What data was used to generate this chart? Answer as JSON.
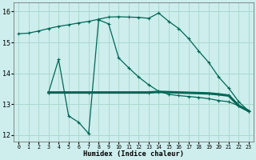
{
  "xlabel": "Humidex (Indice chaleur)",
  "bg_color": "#cdeeed",
  "grid_color": "#aad8cc",
  "line_color": "#006655",
  "xlim": [
    -0.5,
    23.5
  ],
  "ylim": [
    11.8,
    16.3
  ],
  "xticks": [
    0,
    1,
    2,
    3,
    4,
    5,
    6,
    7,
    8,
    9,
    10,
    11,
    12,
    13,
    14,
    15,
    16,
    17,
    18,
    19,
    20,
    21,
    22,
    23
  ],
  "yticks": [
    12,
    13,
    14,
    15,
    16
  ],
  "line1_x": [
    0,
    1,
    2,
    3,
    4,
    5,
    6,
    7,
    8,
    9,
    10,
    11,
    12,
    13,
    14,
    15,
    16,
    17,
    18,
    19,
    20,
    21,
    22,
    23
  ],
  "line1_y": [
    15.28,
    15.3,
    15.37,
    15.45,
    15.52,
    15.57,
    15.63,
    15.68,
    15.75,
    15.82,
    15.83,
    15.82,
    15.81,
    15.78,
    15.95,
    15.68,
    15.45,
    15.12,
    14.72,
    14.35,
    13.88,
    13.52,
    13.08,
    12.78
  ],
  "line2_x": [
    3,
    4,
    5,
    6,
    7,
    8,
    9,
    10,
    11,
    12,
    13,
    14,
    15,
    16,
    17,
    18,
    19,
    20,
    21,
    22,
    23
  ],
  "line2_y": [
    13.38,
    14.45,
    12.62,
    12.42,
    12.05,
    15.73,
    15.6,
    14.5,
    14.18,
    13.88,
    13.63,
    13.42,
    13.32,
    13.28,
    13.25,
    13.22,
    13.18,
    13.12,
    13.08,
    12.95,
    12.78
  ],
  "line3_x": [
    3,
    7,
    13,
    14,
    19,
    20,
    21,
    22,
    23
  ],
  "line3_y": [
    13.38,
    13.38,
    13.38,
    13.4,
    13.35,
    13.32,
    13.28,
    12.95,
    12.78
  ]
}
